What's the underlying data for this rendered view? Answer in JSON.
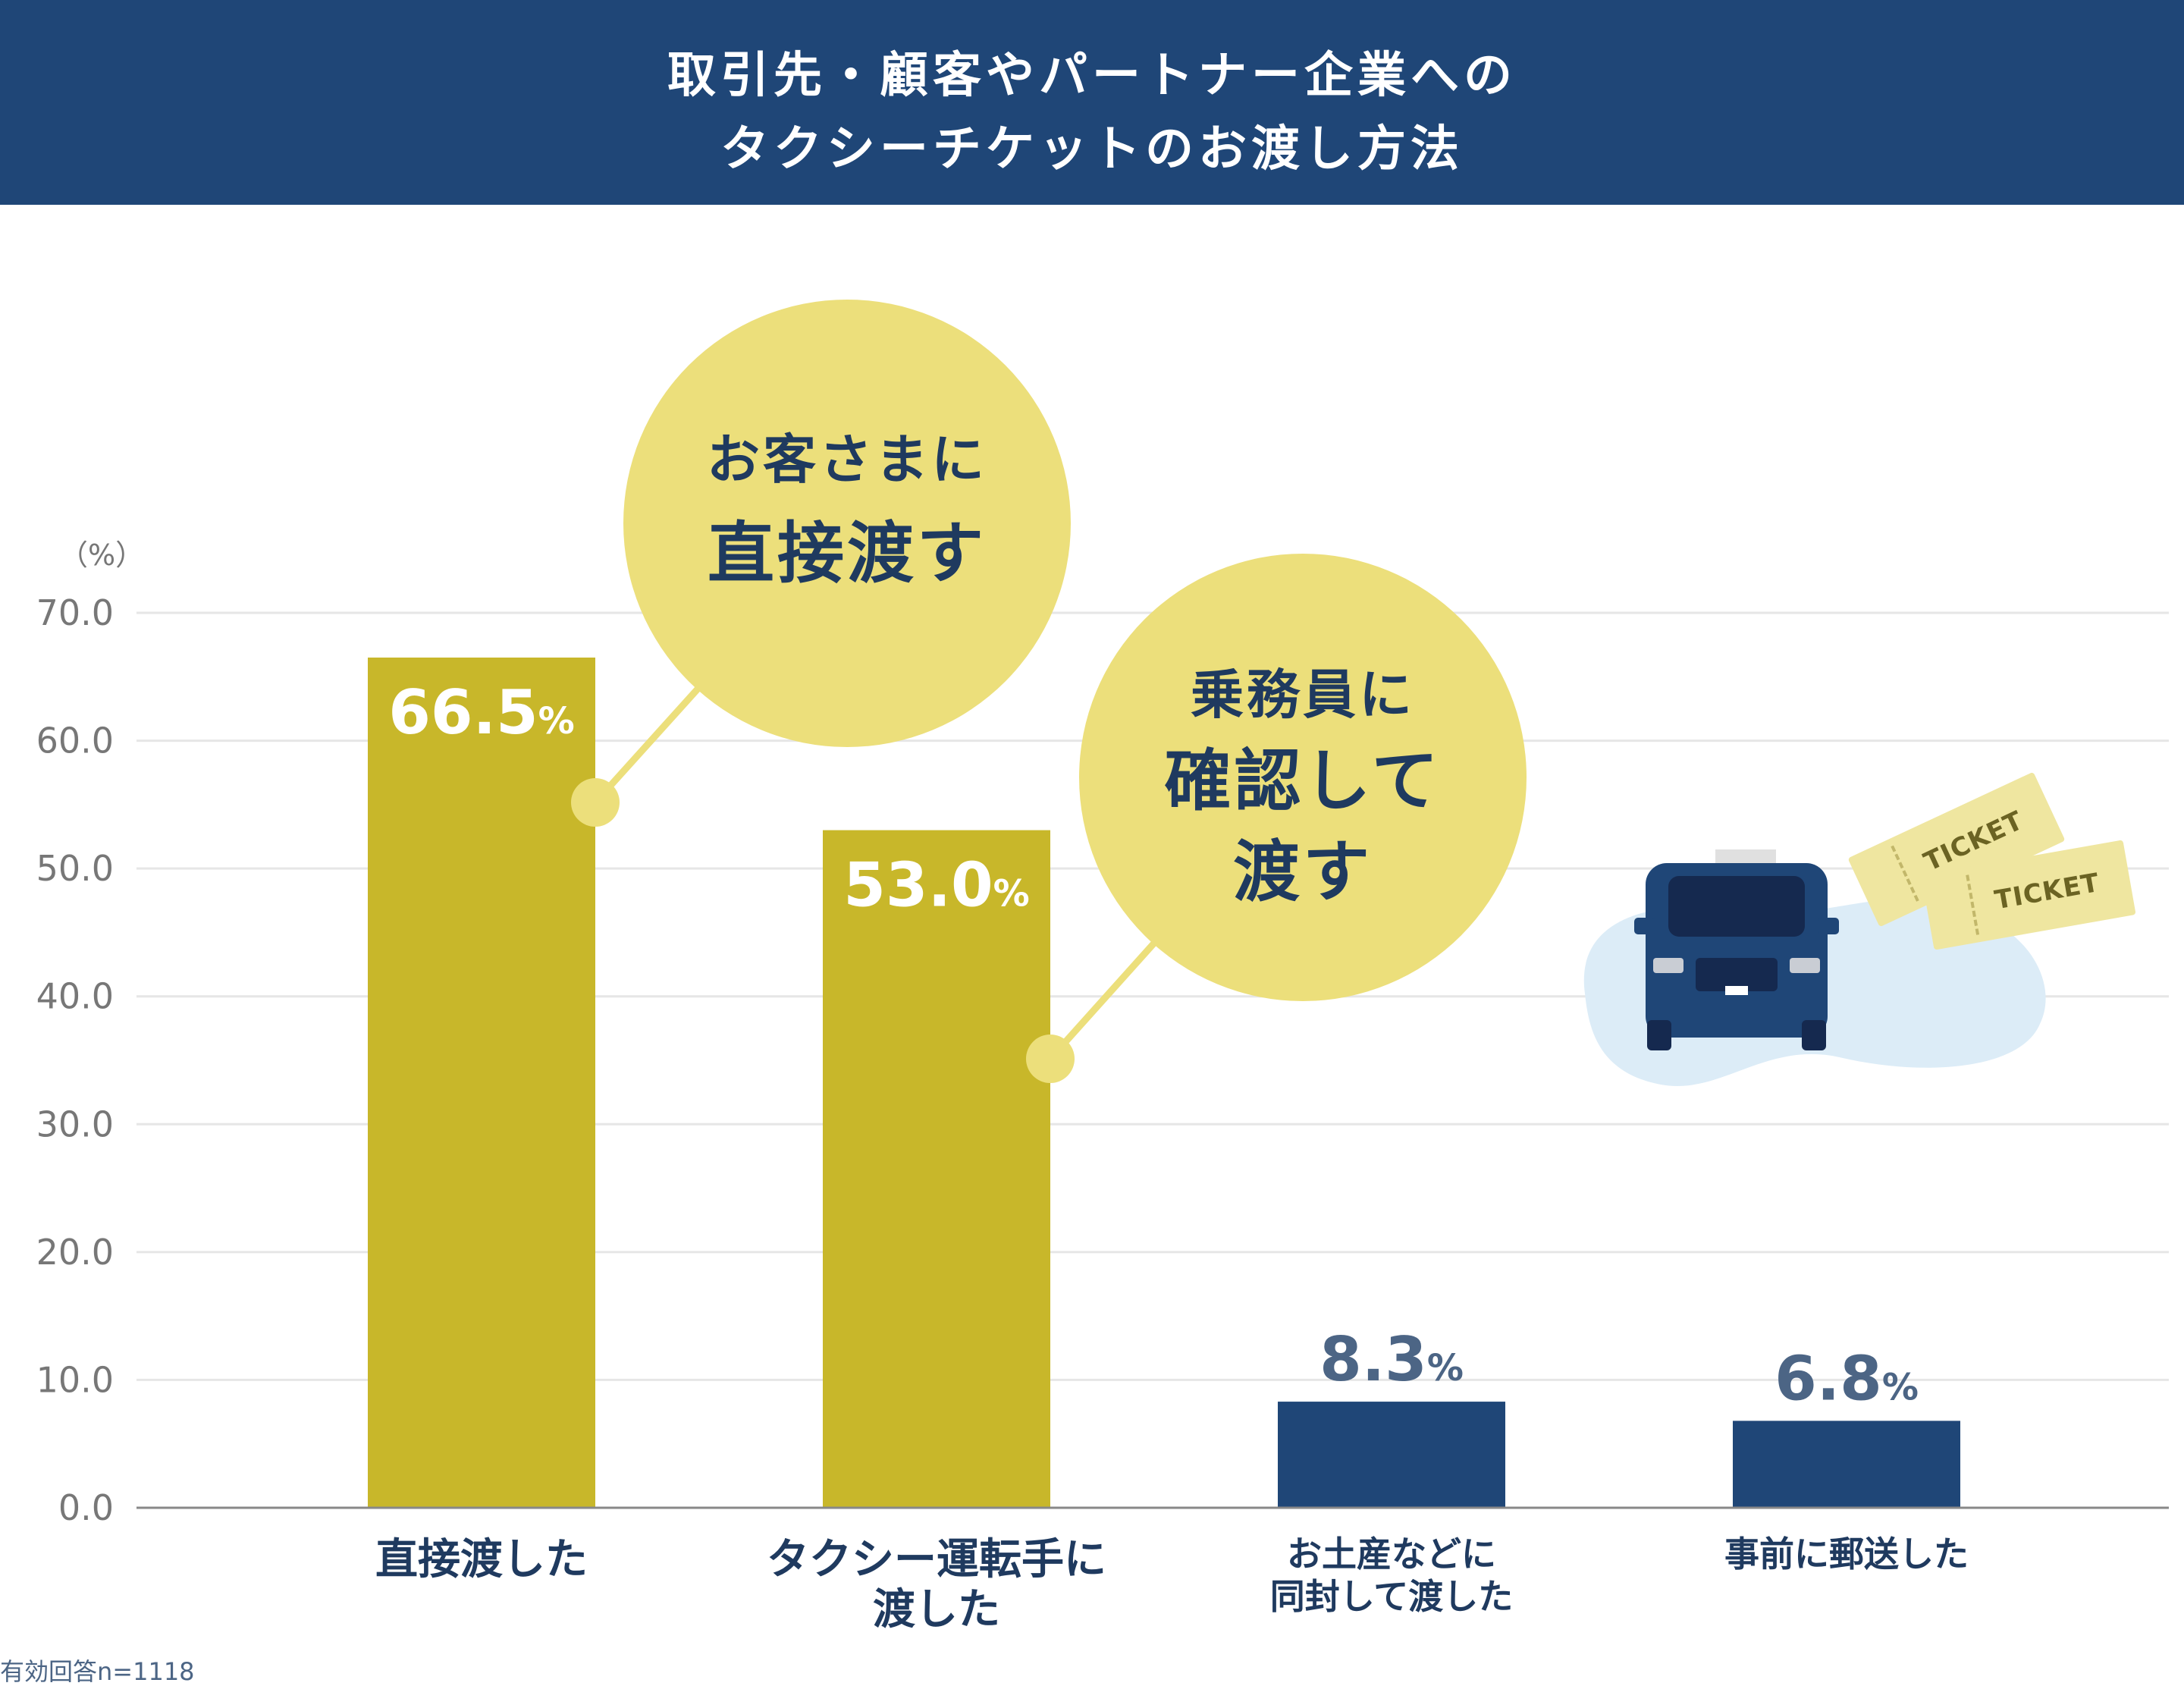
{
  "header": {
    "title_line1": "取引先・顧客やパートナー企業への",
    "title_line2": "タクシーチケットのお渡し方法"
  },
  "chart_data": {
    "type": "bar",
    "categories": [
      [
        "直接渡した"
      ],
      [
        "タクシー運転手に",
        "渡した"
      ],
      [
        "お土産などに",
        "同封して渡した"
      ],
      [
        "事前に郵送した"
      ]
    ],
    "values": [
      66.5,
      53.0,
      8.3,
      6.8
    ],
    "value_labels": [
      "66.5",
      "53.0",
      "8.3",
      "6.8"
    ],
    "value_unit": "%",
    "ylabel": "（%）",
    "ylim": [
      0,
      70
    ],
    "yticks": [
      "0.0",
      "10.0",
      "20.0",
      "30.0",
      "40.0",
      "50.0",
      "60.0",
      "70.0"
    ],
    "grid": true,
    "colors": {
      "highlight": "#c8b72a",
      "normal": "#1f4677",
      "bubble": "#ecdf7b",
      "bubble_text": "#1f3a5f",
      "value_light": "#ffffff",
      "value_dark": "#4c6585",
      "axis_text": "#777777",
      "grid": "#e6e6e6"
    }
  },
  "callouts": [
    {
      "lines": [
        "お客さまに",
        "直接渡す"
      ]
    },
    {
      "lines": [
        "乗務員に",
        "確認して",
        "渡す"
      ]
    }
  ],
  "illustration": {
    "icon": "taxi-with-tickets",
    "ticket_text": "TICKET"
  },
  "footnote": "有効回答n=1118"
}
